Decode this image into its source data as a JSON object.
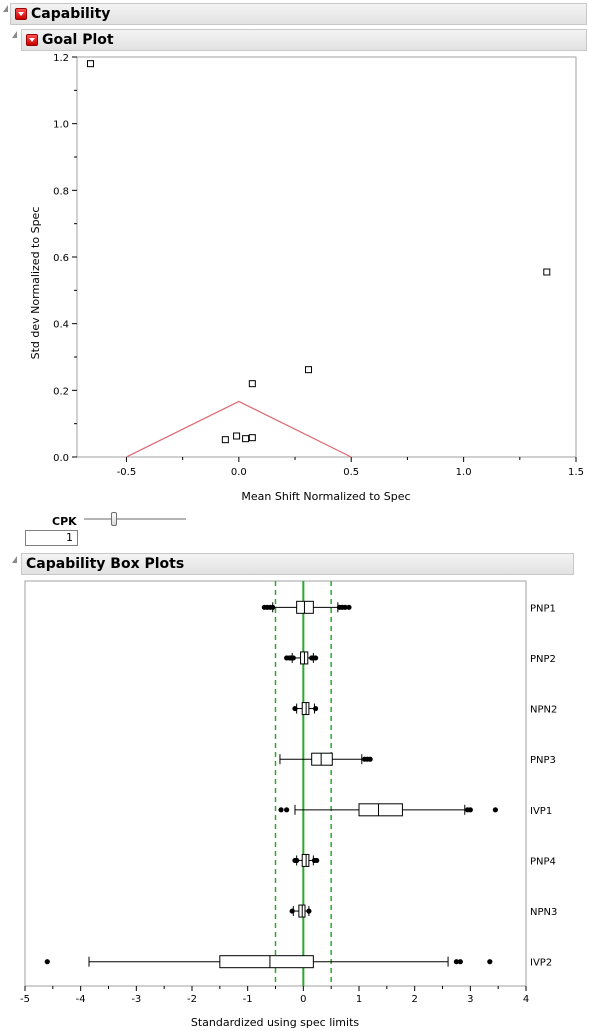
{
  "capability": {
    "title": "Capability"
  },
  "goal_plot": {
    "title": "Goal Plot",
    "cpk_label": "CPK",
    "cpk_value": "1",
    "slider_fraction": 0.28
  },
  "box_plots": {
    "title": "Capability Box Plots"
  },
  "colors": {
    "goal_line": "#e0666e",
    "spec_center": "#2aaa2a",
    "spec_limit": "#2aaa2a"
  },
  "chart_data": [
    {
      "type": "scatter",
      "title": "",
      "xlabel": "Mean Shift Normalized to Spec",
      "ylabel": "Std dev Normalized to Spec",
      "xlim": [
        -0.72,
        1.5
      ],
      "ylim": [
        0,
        1.2
      ],
      "xticks": [
        "-0.5",
        "0.0",
        "0.5",
        "1.0",
        "1.5"
      ],
      "xtick_values": [
        -0.5,
        0,
        0.5,
        1.0,
        1.5
      ],
      "yticks": [
        "0.0",
        "0.2",
        "0.4",
        "0.6",
        "0.8",
        "1.0",
        "1.2"
      ],
      "ytick_values": [
        0,
        0.2,
        0.4,
        0.6,
        0.8,
        1.0,
        1.2
      ],
      "points": [
        {
          "x": -0.66,
          "y": 1.18
        },
        {
          "x": 1.37,
          "y": 0.555
        },
        {
          "x": 0.31,
          "y": 0.262
        },
        {
          "x": 0.06,
          "y": 0.22
        },
        {
          "x": -0.06,
          "y": 0.052
        },
        {
          "x": -0.01,
          "y": 0.063
        },
        {
          "x": 0.03,
          "y": 0.055
        },
        {
          "x": 0.06,
          "y": 0.058
        }
      ],
      "goal_triangle": [
        [
          -0.5,
          0
        ],
        [
          0,
          0.1667
        ],
        [
          0.5,
          0
        ]
      ],
      "grid": false
    },
    {
      "type": "boxplot",
      "xlabel": "Standardized using spec limits",
      "xlim": [
        -5,
        4
      ],
      "xticks": [
        "-5",
        "-4",
        "-3",
        "-2",
        "-1",
        "0",
        "1",
        "2",
        "3",
        "4"
      ],
      "xtick_values": [
        -5,
        -4,
        -3,
        -2,
        -1,
        0,
        1,
        2,
        3,
        4
      ],
      "spec_lines": {
        "center": 0,
        "lower": -0.5,
        "upper": 0.5
      },
      "series": [
        {
          "name": "PNP1",
          "whisker_low": -0.55,
          "q1": -0.12,
          "median": 0.02,
          "q3": 0.18,
          "whisker_high": 0.62,
          "outliers": [
            -0.7,
            -0.65,
            -0.6,
            -0.55,
            0.65,
            0.7,
            0.75,
            0.82
          ]
        },
        {
          "name": "PNP2",
          "whisker_low": -0.2,
          "q1": -0.05,
          "median": 0.02,
          "q3": 0.08,
          "whisker_high": 0.18,
          "outliers": [
            -0.3,
            -0.25,
            -0.22,
            -0.18,
            0.15,
            0.18,
            0.22
          ]
        },
        {
          "name": "NPN2",
          "whisker_low": -0.12,
          "q1": -0.02,
          "median": 0.05,
          "q3": 0.1,
          "whisker_high": 0.2,
          "outliers": [
            -0.15,
            0.22
          ]
        },
        {
          "name": "PNP3",
          "whisker_low": -0.42,
          "q1": 0.15,
          "median": 0.32,
          "q3": 0.52,
          "whisker_high": 1.05,
          "outliers": [
            1.1,
            1.15,
            1.2
          ]
        },
        {
          "name": "IVP1",
          "whisker_low": -0.15,
          "q1": 1.0,
          "median": 1.35,
          "q3": 1.78,
          "whisker_high": 2.9,
          "outliers": [
            -0.4,
            -0.3,
            2.95,
            3.0,
            3.45
          ]
        },
        {
          "name": "PNP4",
          "whisker_low": -0.12,
          "q1": -0.02,
          "median": 0.05,
          "q3": 0.1,
          "whisker_high": 0.18,
          "outliers": [
            -0.15,
            -0.12,
            0.2,
            0.24
          ]
        },
        {
          "name": "NPN3",
          "whisker_low": -0.18,
          "q1": -0.08,
          "median": -0.02,
          "q3": 0.03,
          "whisker_high": 0.1,
          "outliers": [
            -0.2,
            0.1
          ]
        },
        {
          "name": "IVP2",
          "whisker_low": -3.85,
          "q1": -1.5,
          "median": -0.6,
          "q3": 0.18,
          "whisker_high": 2.6,
          "outliers": [
            -4.6,
            2.75,
            2.82,
            3.35
          ]
        }
      ]
    }
  ]
}
